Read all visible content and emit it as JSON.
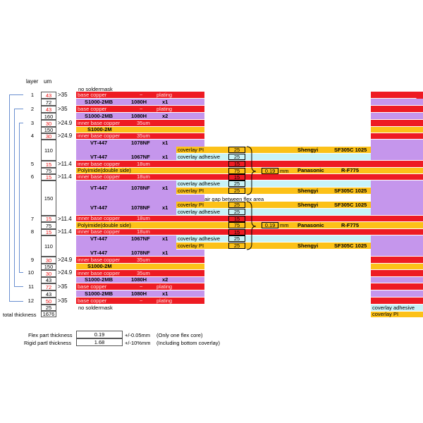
{
  "header": {
    "layer": "layer",
    "um": "um"
  },
  "labels": {
    "no_soldermask_top": "no soldermask",
    "no_soldermask_bottom": "no soldermask",
    "total_thickness": "total thickness",
    "air_gap": "air gap between flex area",
    "flex_thickness_label": "Flex part thickness",
    "rigid_thickness_label": "Rigid partl thickness",
    "flex_thickness_value": "0.19",
    "rigid_thickness_value": "1.68",
    "flex_tolerance": "+/-0.05mm",
    "rigid_tolerance": "+/-10%mm",
    "flex_note": "(Only one flex core)",
    "rigid_note": "(Including bottom coverlay)",
    "gap_mm": "0.19",
    "mm": "mm"
  },
  "thickness": {
    "t1": "43",
    "t2": "72",
    "t3": "43",
    "t4": "160",
    "t5": "30",
    "t6": "150",
    "t7": "30",
    "t8": "110",
    "t9": "15",
    "t10": "75",
    "t11": "15",
    "t12": "150",
    "t13": "15",
    "t14": "75",
    "t15": "15",
    "t16": "110",
    "t17": "30",
    "t18": "150",
    "t19": "30",
    "t20": "43",
    "t21": "72",
    "t22": "43",
    "t23": "50",
    "t24": "25",
    "total": "1676"
  },
  "layers": [
    "1",
    "2",
    "3",
    "4",
    "5",
    "6",
    "7",
    "8",
    "9",
    "10",
    "11",
    "12"
  ],
  "gaps": {
    "g1": ">35",
    "g2": ">35",
    "g3": ">24.9",
    "g4": ">24.9",
    "g5": ">11.4",
    "g6": ">11.4",
    "g7": ">11.4",
    "g8": ">11.4",
    "g9": ">24.9",
    "g10": ">24.9",
    "g11": ">35",
    "g12": ">35"
  },
  "rigid": {
    "base_copper": "base copper",
    "inner_base_copper": "inner base copper",
    "plating": "plating",
    "tilde": "~",
    "um35": "35um",
    "um18": "18um",
    "s1000_2mb": "S1000-2MB",
    "s1000_2m": "S1000-2M",
    "vt447": "VT-447",
    "p1080h": "1080H",
    "p1078nf": "1078NF",
    "p1067nf": "1067NF",
    "x1": "x1",
    "x2": "x2",
    "polyimide": "Polyimide(double side)"
  },
  "flex": {
    "coverlay_pi": "coverlay PI",
    "coverlay_adhesive": "coverlay adhesive",
    "v25": "25",
    "v75": "75",
    "v15": "15",
    "shengyi": "Shengyi",
    "sf305c": "SF305C 1025",
    "panasonic": "Panasonic",
    "rf775": "R-F775"
  },
  "right": {
    "coverlay_adhesive": "coverlay adhesive",
    "coverlay_pi": "coverlay PI"
  },
  "colors": {
    "copper": "#ee1b23",
    "prepreg": "#c596ec",
    "polyimide": "#fcc118",
    "adhesive": "#c8f3f8"
  }
}
